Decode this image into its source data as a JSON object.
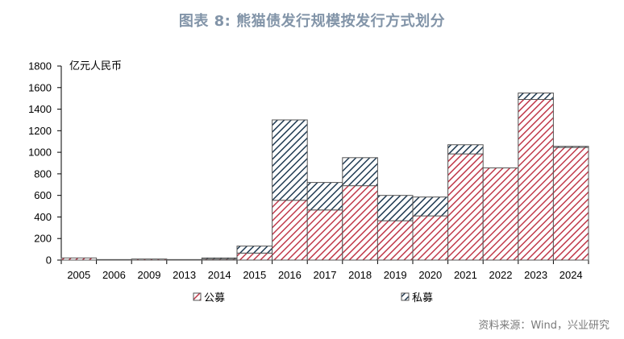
{
  "title": "图表 8: 熊猫债发行规模按发行方式划分",
  "source": "资料来源：Wind，兴业研究",
  "chart_data": {
    "type": "bar",
    "stacked": true,
    "unit_label": "亿元人民币",
    "categories": [
      "2005",
      "2006",
      "2009",
      "2013",
      "2014",
      "2015",
      "2016",
      "2017",
      "2018",
      "2019",
      "2020",
      "2021",
      "2022",
      "2023",
      "2024"
    ],
    "series": [
      {
        "name": "公募",
        "color": "#c0394a",
        "pattern": "diagonal-hatch",
        "values": [
          20,
          5,
          10,
          5,
          10,
          65,
          555,
          465,
          690,
          365,
          410,
          985,
          855,
          1490,
          1045
        ]
      },
      {
        "name": "私募",
        "color": "#1f3a52",
        "pattern": "diagonal-hatch",
        "values": [
          0,
          0,
          0,
          0,
          10,
          65,
          745,
          255,
          260,
          235,
          175,
          85,
          0,
          60,
          10
        ]
      }
    ],
    "ylim": [
      0,
      1800
    ],
    "yticks": [
      0,
      200,
      400,
      600,
      800,
      1000,
      1200,
      1400,
      1600,
      1800
    ],
    "grid": false,
    "legend_position": "bottom"
  }
}
